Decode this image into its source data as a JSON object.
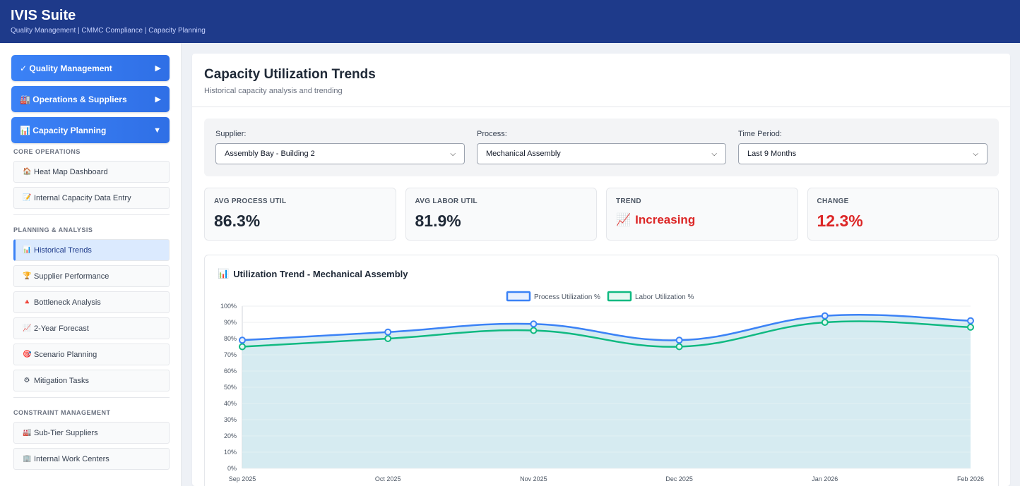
{
  "header": {
    "title": "IVIS Suite",
    "subtitle": "Quality Management | CMMC Compliance | Capacity Planning"
  },
  "sidebar": {
    "nav": [
      {
        "label": "✓ Quality Management",
        "arrow": "▶"
      },
      {
        "label": "🏭 Operations & Suppliers",
        "arrow": "▶"
      },
      {
        "label": "📊 Capacity Planning",
        "arrow": "▼"
      }
    ],
    "sections": [
      {
        "title": "CORE OPERATIONS",
        "items": [
          {
            "icon": "🏠",
            "label": "Heat Map Dashboard"
          },
          {
            "icon": "📝",
            "label": "Internal Capacity Data Entry"
          }
        ]
      },
      {
        "title": "PLANNING & ANALYSIS",
        "items": [
          {
            "icon": "📊",
            "label": "Historical Trends"
          },
          {
            "icon": "🏆",
            "label": "Supplier Performance"
          },
          {
            "icon": "🔺",
            "label": "Bottleneck Analysis"
          },
          {
            "icon": "📈",
            "label": "2-Year Forecast"
          },
          {
            "icon": "🎯",
            "label": "Scenario Planning"
          },
          {
            "icon": "⚙",
            "label": "Mitigation Tasks"
          }
        ]
      },
      {
        "title": "CONSTRAINT MANAGEMENT",
        "items": [
          {
            "icon": "🏭",
            "label": "Sub-Tier Suppliers"
          },
          {
            "icon": "🏢",
            "label": "Internal Work Centers"
          }
        ]
      }
    ]
  },
  "page": {
    "title": "Capacity Utilization Trends",
    "subtitle": "Historical capacity analysis and trending"
  },
  "filters": {
    "supplier": {
      "label": "Supplier:",
      "value": "Assembly Bay - Building 2"
    },
    "process": {
      "label": "Process:",
      "value": "Mechanical Assembly"
    },
    "period": {
      "label": "Time Period:",
      "value": "Last 9 Months"
    }
  },
  "stats": {
    "avg_process": {
      "label": "AVG PROCESS UTIL",
      "value": "86.3%"
    },
    "avg_labor": {
      "label": "AVG LABOR UTIL",
      "value": "81.9%"
    },
    "trend": {
      "label": "TREND",
      "icon": "📈",
      "value": "Increasing"
    },
    "change": {
      "label": "CHANGE",
      "value": "12.3%"
    }
  },
  "chart": {
    "icon": "📊",
    "title": "Utilization Trend - Mechanical Assembly"
  },
  "colors": {
    "process": "#3b82f6",
    "labor": "#10b981",
    "fill": "#cfe8ee"
  },
  "chart_data": {
    "type": "line",
    "title": "Utilization Trend - Mechanical Assembly",
    "categories": [
      "Sep 2025",
      "Oct 2025",
      "Nov 2025",
      "Dec 2025",
      "Jan 2026",
      "Feb 2026"
    ],
    "series": [
      {
        "name": "Process Utilization %",
        "values": [
          79,
          84,
          89,
          79,
          94,
          91
        ]
      },
      {
        "name": "Labor Utilization %",
        "values": [
          75,
          80,
          85,
          75,
          90,
          87
        ]
      }
    ],
    "yticks": [
      0,
      10,
      20,
      30,
      40,
      50,
      60,
      70,
      80,
      90,
      100
    ],
    "ytick_suffix": "%",
    "ylim": [
      0,
      100
    ],
    "legend": "top-center",
    "grid": true
  }
}
